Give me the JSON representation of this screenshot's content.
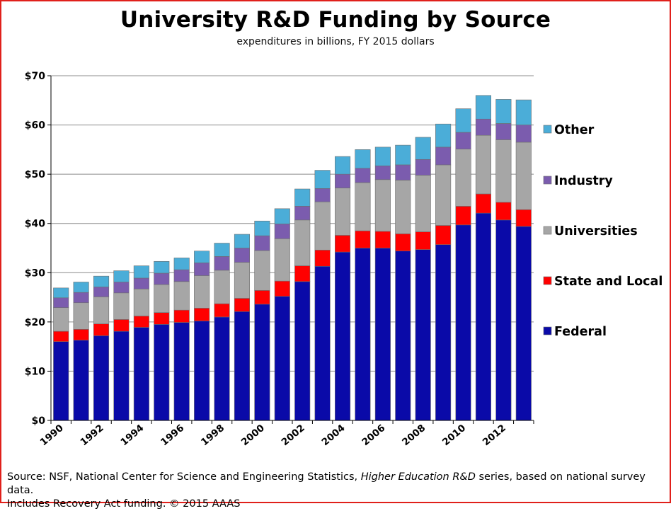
{
  "chart_data": {
    "type": "bar",
    "stacked": true,
    "title": "University R&D Funding by Source",
    "subtitle": "expenditures in billions, FY 2015 dollars",
    "ylabel": "",
    "xlabel": "",
    "ylim": [
      0,
      70
    ],
    "y_ticks": [
      "$0",
      "$10",
      "$20",
      "$30",
      "$40",
      "$50",
      "$60",
      "$70"
    ],
    "y_tick_values": [
      0,
      10,
      20,
      30,
      40,
      50,
      60,
      70
    ],
    "categories": [
      1990,
      1991,
      1992,
      1993,
      1994,
      1995,
      1996,
      1997,
      1998,
      1999,
      2000,
      2001,
      2002,
      2003,
      2004,
      2005,
      2006,
      2007,
      2008,
      2009,
      2010,
      2011,
      2012,
      2013
    ],
    "x_tick_labels": [
      "1990",
      "1992",
      "1994",
      "1996",
      "1998",
      "2000",
      "2002",
      "2004",
      "2006",
      "2008",
      "2010",
      "2012"
    ],
    "grid": true,
    "legend_placement": "right",
    "series": [
      {
        "name": "Federal",
        "color": "#0a0aa8",
        "values": [
          16.0,
          16.3,
          17.2,
          18.1,
          18.9,
          19.5,
          19.9,
          20.2,
          21.0,
          22.1,
          23.6,
          25.2,
          28.2,
          31.3,
          34.2,
          35.0,
          35.0,
          34.4,
          34.7,
          35.7,
          39.7,
          42.1,
          40.7,
          39.4
        ]
      },
      {
        "name": "State and Local",
        "color": "#ff0000",
        "values": [
          2.1,
          2.2,
          2.4,
          2.4,
          2.3,
          2.4,
          2.5,
          2.6,
          2.7,
          2.7,
          2.8,
          3.1,
          3.2,
          3.3,
          3.4,
          3.5,
          3.4,
          3.5,
          3.6,
          3.9,
          3.8,
          3.9,
          3.6,
          3.4
        ]
      },
      {
        "name": "Universities",
        "color": "#a6a6a6",
        "values": [
          4.8,
          5.4,
          5.5,
          5.4,
          5.5,
          5.7,
          5.8,
          6.6,
          6.8,
          7.3,
          8.1,
          8.6,
          9.3,
          9.8,
          9.6,
          9.8,
          10.5,
          10.9,
          11.5,
          12.3,
          11.6,
          11.9,
          12.7,
          13.7
        ]
      },
      {
        "name": "Industry",
        "color": "#7b5cae",
        "values": [
          2.0,
          2.1,
          2.0,
          2.2,
          2.2,
          2.3,
          2.4,
          2.6,
          2.8,
          2.9,
          3.0,
          3.0,
          2.8,
          2.7,
          2.8,
          2.9,
          2.8,
          3.1,
          3.2,
          3.6,
          3.4,
          3.3,
          3.3,
          3.5
        ]
      },
      {
        "name": "Other",
        "color": "#4badd8",
        "values": [
          2.0,
          2.1,
          2.2,
          2.3,
          2.5,
          2.4,
          2.4,
          2.4,
          2.7,
          2.8,
          3.0,
          3.1,
          3.5,
          3.7,
          3.6,
          3.8,
          3.8,
          4.0,
          4.5,
          4.7,
          4.8,
          4.8,
          4.9,
          5.1
        ]
      }
    ],
    "legend_order": [
      "Other",
      "Industry",
      "Universities",
      "State and Local",
      "Federal"
    ]
  },
  "source": {
    "prefix": "Source: NSF, National Center for Science and Engineering Statistics, ",
    "series_name": "Higher Education R&D",
    "suffix": " series, based on national survey data.",
    "line2": "Includes Recovery Act funding. © 2015 AAAS"
  },
  "colors": {
    "border": "#e0201b",
    "grid": "#8c8c8c",
    "bar_outline": "#6e6e6e"
  }
}
